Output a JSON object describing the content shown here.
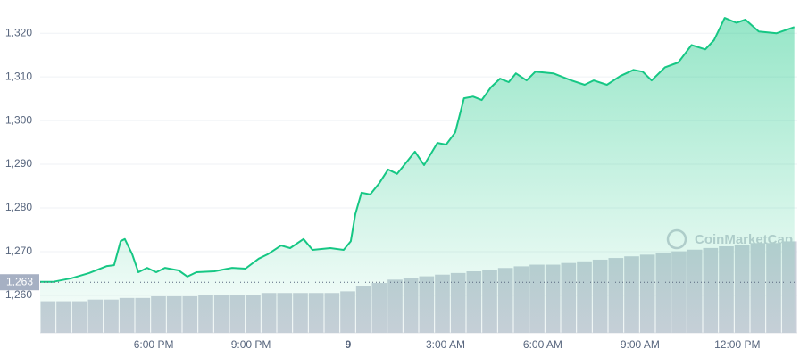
{
  "chart_data": {
    "type": "line",
    "watermark": "CoinMarketCap",
    "x": [
      14.5,
      14.91,
      15.46,
      16.01,
      16.56,
      16.78,
      16.98,
      17.11,
      17.34,
      17.53,
      17.8,
      18.08,
      18.35,
      18.77,
      19.04,
      19.32,
      19.87,
      20.42,
      20.83,
      21.24,
      21.52,
      21.93,
      22.21,
      22.62,
      22.9,
      23.45,
      23.86,
      24.08,
      24.22,
      24.41,
      24.68,
      24.96,
      25.23,
      25.51,
      25.79,
      26.06,
      26.34,
      26.75,
      27.02,
      27.3,
      27.57,
      27.85,
      28.12,
      28.4,
      28.68,
      28.95,
      29.17,
      29.5,
      29.77,
      30.33,
      30.88,
      31.29,
      31.57,
      31.98,
      32.39,
      32.8,
      33.08,
      33.36,
      33.77,
      34.18,
      34.59,
      35.01,
      35.28,
      35.61,
      35.97,
      36.25,
      36.66,
      37.21,
      37.76
    ],
    "series": [
      {
        "color": "#16c784",
        "values": [
          1263.1,
          1263.1,
          1263.9,
          1265.1,
          1266.7,
          1266.9,
          1272.4,
          1272.9,
          1269.4,
          1265.3,
          1266.3,
          1265.3,
          1266.3,
          1265.7,
          1264.3,
          1265.3,
          1265.5,
          1266.3,
          1266.1,
          1268.4,
          1269.4,
          1271.4,
          1270.8,
          1272.9,
          1270.4,
          1270.8,
          1270.4,
          1272.4,
          1278.6,
          1283.5,
          1283.1,
          1285.7,
          1288.8,
          1287.8,
          1290.4,
          1292.9,
          1289.8,
          1294.9,
          1294.5,
          1297.3,
          1305.1,
          1305.5,
          1304.7,
          1307.6,
          1309.6,
          1308.8,
          1310.8,
          1309.2,
          1311.2,
          1310.8,
          1309.2,
          1308.2,
          1309.2,
          1308.2,
          1310.2,
          1311.6,
          1311.2,
          1309.2,
          1312.2,
          1313.3,
          1317.3,
          1316.3,
          1318.4,
          1323.5,
          1322.4,
          1323.1,
          1320.4,
          1320,
          1321.4
        ]
      }
    ],
    "volume": {
      "color": "#c9cfd9",
      "values": [
        19,
        19,
        19,
        20,
        20,
        21,
        21,
        22,
        22,
        22,
        23,
        23,
        23,
        23,
        24,
        24,
        24,
        24,
        24,
        25,
        28,
        30,
        32,
        33,
        34,
        35,
        36,
        37,
        38,
        39,
        40,
        41,
        41,
        42,
        43,
        44,
        45,
        46,
        47,
        48,
        49,
        50,
        51,
        52,
        53,
        54,
        54,
        55
      ],
      "lim": [
        0,
        60
      ]
    },
    "reference": {
      "value": 1263,
      "label": "1,263"
    },
    "xlim": [
      14.5,
      37.85
    ],
    "xticks": [
      {
        "value": 18,
        "label": "6:00 PM"
      },
      {
        "value": 21,
        "label": "9:00 PM"
      },
      {
        "value": 24,
        "label": "9"
      },
      {
        "value": 27,
        "label": "3:00 AM"
      },
      {
        "value": 30,
        "label": "6:00 AM"
      },
      {
        "value": 33,
        "label": "9:00 AM"
      },
      {
        "value": 36,
        "label": "12:00 PM"
      }
    ],
    "ylim": [
      1251.4,
      1327.6
    ],
    "yticks": [
      {
        "value": 1260,
        "label": "1,260"
      },
      {
        "value": 1270,
        "label": "1,270"
      },
      {
        "value": 1280,
        "label": "1,280"
      },
      {
        "value": 1290,
        "label": "1,290"
      },
      {
        "value": 1300,
        "label": "1,300"
      },
      {
        "value": 1310,
        "label": "1,310"
      },
      {
        "value": 1320,
        "label": "1,320"
      }
    ],
    "grid": true
  }
}
